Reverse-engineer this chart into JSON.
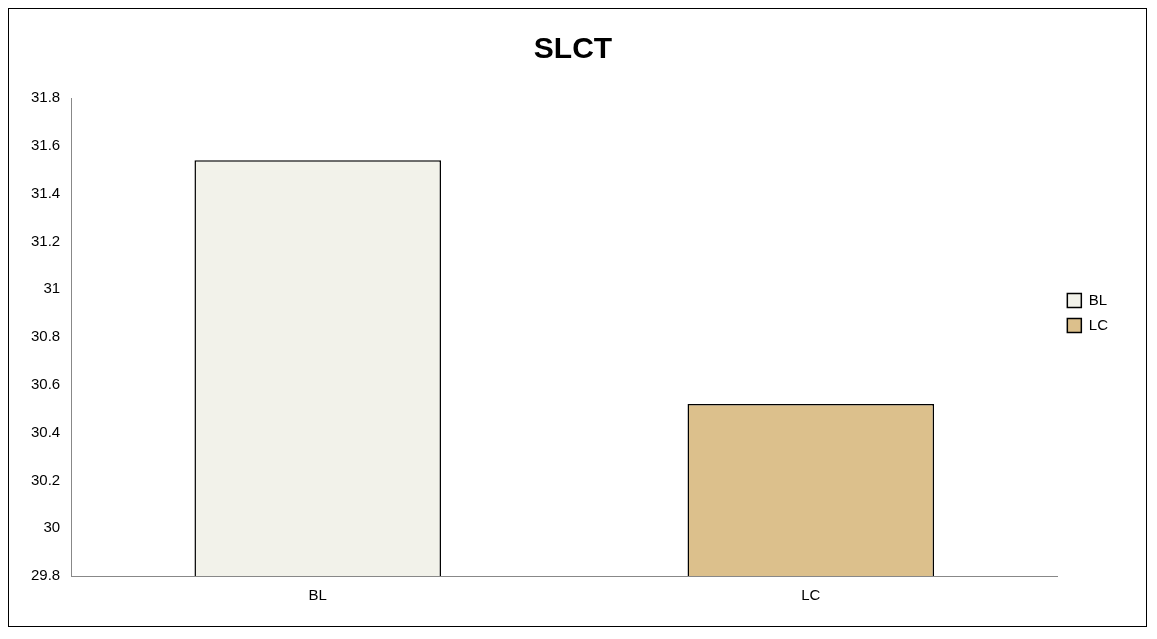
{
  "chart_data": {
    "type": "bar",
    "title": "SLCT",
    "categories": [
      "BL",
      "LC"
    ],
    "series": [
      {
        "name": "BL",
        "color": "#f2f2ea",
        "values": [
          31.54,
          null
        ]
      },
      {
        "name": "LC",
        "color": "#dcc08c",
        "values": [
          null,
          30.52
        ]
      }
    ],
    "ylim": [
      29.8,
      31.8
    ],
    "yticks": [
      29.8,
      30,
      30.2,
      30.4,
      30.6,
      30.8,
      31,
      31.2,
      31.4,
      31.6,
      31.8
    ],
    "grid": false,
    "legend": "right"
  }
}
